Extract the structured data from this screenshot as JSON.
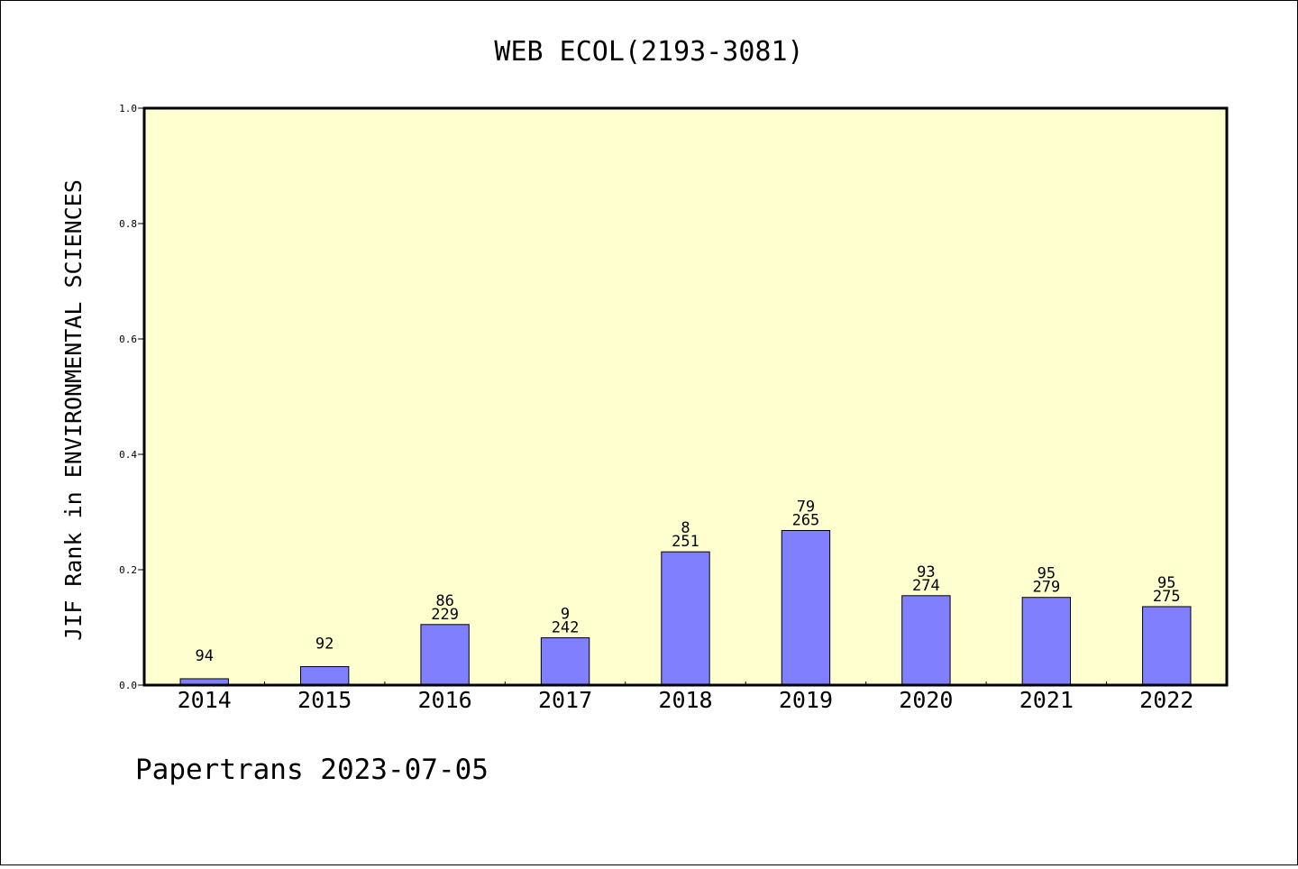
{
  "chart_data": {
    "type": "bar",
    "title": "WEB ECOL(2193-3081)",
    "ylabel": "JIF Rank in ENVIRONMENTAL SCIENCES",
    "xlabel": "",
    "ylim": [
      0,
      1.0
    ],
    "yticks": [
      "0.0",
      "0.2",
      "0.4",
      "0.6",
      "0.8",
      "1.0"
    ],
    "categories": [
      "2014",
      "2015",
      "2016",
      "2017",
      "2018",
      "2019",
      "2020",
      "2021",
      "2022"
    ],
    "values": [
      0.011,
      0.032,
      0.105,
      0.082,
      0.231,
      0.268,
      0.155,
      0.152,
      0.136
    ],
    "label_top": [
      "",
      "",
      "86",
      "9",
      "8",
      "79",
      "93",
      "95",
      "95"
    ],
    "label_bottom": [
      "94",
      "92",
      "229",
      "242",
      "251",
      "265",
      "274",
      "279",
      "275"
    ],
    "grid": false,
    "colors": {
      "plot_background": "#ffffd0",
      "bar": "#8080ff",
      "axis": "#000000"
    }
  },
  "footer": "Papertrans 2023-07-05"
}
